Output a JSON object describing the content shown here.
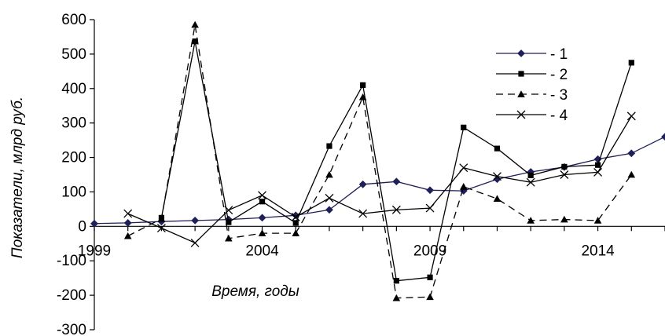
{
  "chart_data": {
    "type": "line",
    "title": "",
    "xlabel": "Время, годы",
    "ylabel": "Показатели,  млрд руб.",
    "xlim": [
      1999,
      2016
    ],
    "ylim": [
      -300,
      600
    ],
    "y_ticks": [
      600,
      500,
      400,
      300,
      200,
      100,
      0,
      -100,
      -200,
      -300
    ],
    "y_tick_labels": [
      "600",
      "500",
      "400",
      "300",
      "200",
      "100",
      "0",
      "-100",
      "-200",
      "-300"
    ],
    "x_ticks": [
      1999,
      2004,
      2009,
      2014
    ],
    "x_tick_labels": [
      "1999",
      "2004",
      "2009",
      "2014"
    ],
    "grid": false,
    "legend_position": "top-right",
    "series": [
      {
        "name": "- 1",
        "marker": "diamond",
        "dash": "solid",
        "color": "#1f1f5a",
        "x": [
          1999,
          2000,
          2001,
          2002,
          2003,
          2004,
          2005,
          2006,
          2007,
          2008,
          2009,
          2010,
          2011,
          2012,
          2013,
          2014,
          2015,
          2016
        ],
        "values": [
          8,
          10,
          14,
          17,
          20,
          25,
          32,
          48,
          122,
          130,
          105,
          103,
          137,
          158,
          172,
          195,
          212,
          260
        ]
      },
      {
        "name": "- 2",
        "marker": "square",
        "dash": "solid",
        "color": "#000000",
        "x": [
          2001,
          2002,
          2003,
          2004,
          2005,
          2006,
          2007,
          2008,
          2009,
          2010,
          2011,
          2012,
          2013,
          2014,
          2015
        ],
        "values": [
          25,
          537,
          12,
          72,
          10,
          233,
          410,
          -158,
          -148,
          287,
          226,
          148,
          173,
          178,
          475
        ]
      },
      {
        "name": "- 3",
        "marker": "triangle",
        "dash": "dashed",
        "color": "#000000",
        "x": [
          2000,
          2001,
          2002,
          2003,
          2004,
          2005,
          2006,
          2007,
          2008,
          2009,
          2010,
          2011,
          2012,
          2013,
          2014,
          2015
        ],
        "values": [
          -28,
          22,
          585,
          -35,
          -20,
          -20,
          150,
          375,
          -208,
          -205,
          115,
          80,
          17,
          20,
          17,
          150
        ]
      },
      {
        "name": "- 4",
        "marker": "x",
        "dash": "solid",
        "color": "#000000",
        "x": [
          2000,
          2001,
          2002,
          2003,
          2004,
          2005,
          2006,
          2007,
          2008,
          2009,
          2010,
          2011,
          2012,
          2013,
          2014,
          2015
        ],
        "values": [
          37,
          -5,
          -48,
          47,
          90,
          27,
          82,
          37,
          48,
          53,
          170,
          145,
          128,
          150,
          157,
          320
        ]
      }
    ]
  }
}
